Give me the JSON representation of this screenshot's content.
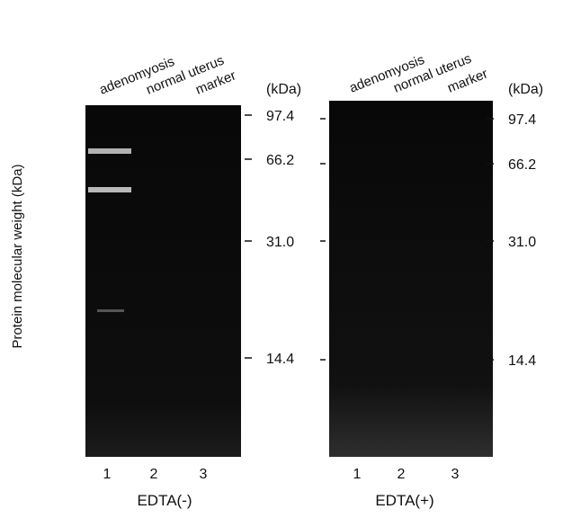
{
  "y_axis_label": "Protein molecular weight (kDa)",
  "panels": [
    {
      "lane_labels": [
        "adenomyosis",
        "normal uterus",
        "marker"
      ],
      "lane_numbers": [
        "1",
        "2",
        "3"
      ],
      "condition": "EDTA(-)",
      "unit": "(kDa)",
      "markers": [
        "97.4",
        "66.2",
        "31.0",
        "14.4"
      ]
    },
    {
      "lane_labels": [
        "adenomyosis",
        "normal uterus",
        "marker"
      ],
      "lane_numbers": [
        "1",
        "2",
        "3"
      ],
      "condition": "EDTA(+)",
      "unit": "(kDa)",
      "markers": [
        "97.4",
        "66.2",
        "31.0",
        "14.4"
      ]
    }
  ]
}
